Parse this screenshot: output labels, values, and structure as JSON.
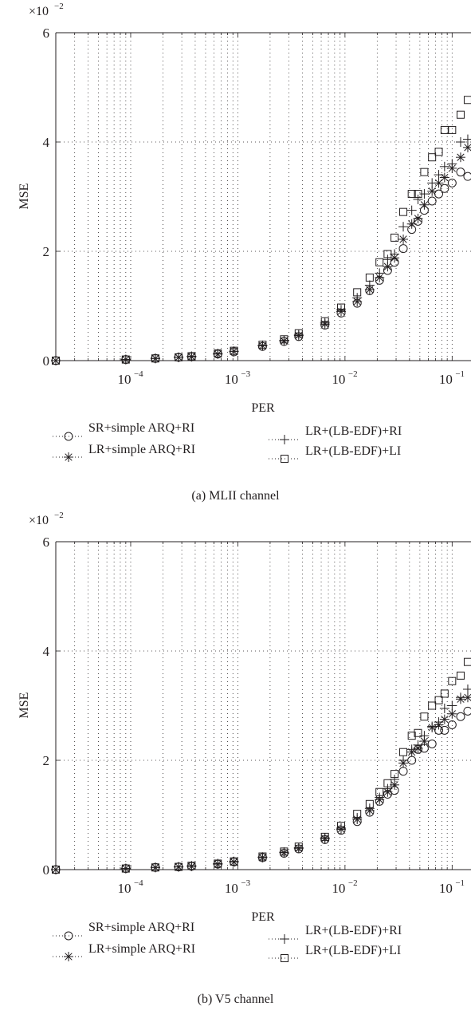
{
  "chart_data": [
    {
      "type": "scatter",
      "x_scale": "log",
      "xlim": [
        2e-05,
        0.15
      ],
      "ylim": [
        0,
        6
      ],
      "y_multiplier_label": "×10",
      "y_multiplier_exponent": "−2",
      "xlabel": "PER",
      "ylabel": "MSE",
      "grid": true,
      "legend_placement": "bottom",
      "x_ticks": [
        {
          "value": 0.0001,
          "label": "10",
          "exp": "−4"
        },
        {
          "value": 0.001,
          "label": "10",
          "exp": "−3"
        },
        {
          "value": 0.01,
          "label": "10",
          "exp": "−2"
        },
        {
          "value": 0.1,
          "label": "10",
          "exp": "−1"
        }
      ],
      "y_ticks": [
        {
          "value": 0,
          "label": "0"
        },
        {
          "value": 2,
          "label": "2"
        },
        {
          "value": 4,
          "label": "4"
        },
        {
          "value": 6,
          "label": "6"
        }
      ],
      "caption": "(a)  MLII channel",
      "series": [
        {
          "name": "SR+simple ARQ+RI",
          "marker": "circle",
          "x": [
            2e-05,
            9e-05,
            0.00017,
            0.00028,
            0.00037,
            0.00065,
            0.00092,
            0.0017,
            0.0027,
            0.0037,
            0.0065,
            0.0092,
            0.013,
            0.017,
            0.021,
            0.025,
            0.029,
            0.035,
            0.042,
            0.048,
            0.055,
            0.065,
            0.075,
            0.085,
            0.1,
            0.12,
            0.14
          ],
          "y": [
            0,
            0.02,
            0.04,
            0.06,
            0.07,
            0.12,
            0.16,
            0.26,
            0.35,
            0.44,
            0.65,
            0.87,
            1.05,
            1.28,
            1.47,
            1.65,
            1.8,
            2.05,
            2.4,
            2.55,
            2.75,
            2.92,
            3.05,
            3.15,
            3.25,
            3.45,
            3.37
          ]
        },
        {
          "name": "LR+simple ARQ+RI",
          "marker": "asterisk",
          "x": [
            2e-05,
            9e-05,
            0.00017,
            0.00028,
            0.00037,
            0.00065,
            0.00092,
            0.0017,
            0.0027,
            0.0037,
            0.0065,
            0.0092,
            0.013,
            0.017,
            0.021,
            0.025,
            0.029,
            0.035,
            0.042,
            0.048,
            0.055,
            0.065,
            0.075,
            0.085,
            0.1,
            0.12,
            0.14
          ],
          "y": [
            0,
            0.02,
            0.04,
            0.06,
            0.07,
            0.12,
            0.17,
            0.27,
            0.36,
            0.46,
            0.67,
            0.9,
            1.08,
            1.3,
            1.52,
            1.72,
            1.88,
            2.22,
            2.5,
            2.6,
            2.85,
            3.1,
            3.25,
            3.35,
            3.52,
            3.72,
            3.9
          ]
        },
        {
          "name": "LR+(LB-EDF)+RI",
          "marker": "plus",
          "x": [
            2e-05,
            9e-05,
            0.00017,
            0.00028,
            0.00037,
            0.00065,
            0.00092,
            0.0017,
            0.0027,
            0.0037,
            0.0065,
            0.0092,
            0.013,
            0.017,
            0.021,
            0.025,
            0.029,
            0.035,
            0.042,
            0.048,
            0.055,
            0.065,
            0.075,
            0.085,
            0.1,
            0.12,
            0.14
          ],
          "y": [
            0,
            0.02,
            0.04,
            0.06,
            0.08,
            0.13,
            0.17,
            0.28,
            0.37,
            0.48,
            0.7,
            0.93,
            1.15,
            1.38,
            1.6,
            1.85,
            1.95,
            2.45,
            2.75,
            2.95,
            3.05,
            3.25,
            3.4,
            3.55,
            3.6,
            4.0,
            4.05
          ]
        },
        {
          "name": "LR+(LB-EDF)+LI",
          "marker": "square",
          "x": [
            2e-05,
            9e-05,
            0.00017,
            0.00028,
            0.00037,
            0.00065,
            0.00092,
            0.0017,
            0.0027,
            0.0037,
            0.0065,
            0.0092,
            0.013,
            0.017,
            0.021,
            0.025,
            0.029,
            0.035,
            0.042,
            0.048,
            0.055,
            0.065,
            0.075,
            0.085,
            0.1,
            0.12,
            0.14
          ],
          "y": [
            0,
            0.02,
            0.04,
            0.06,
            0.08,
            0.13,
            0.18,
            0.29,
            0.39,
            0.5,
            0.72,
            0.97,
            1.25,
            1.52,
            1.8,
            1.95,
            2.25,
            2.72,
            3.05,
            3.05,
            3.45,
            3.72,
            3.82,
            4.22,
            4.22,
            4.5,
            4.77
          ]
        }
      ]
    },
    {
      "type": "scatter",
      "x_scale": "log",
      "xlim": [
        2e-05,
        0.15
      ],
      "ylim": [
        0,
        6
      ],
      "y_multiplier_label": "×10",
      "y_multiplier_exponent": "−2",
      "xlabel": "PER",
      "ylabel": "MSE",
      "grid": true,
      "legend_placement": "bottom",
      "x_ticks": [
        {
          "value": 0.0001,
          "label": "10",
          "exp": "−4"
        },
        {
          "value": 0.001,
          "label": "10",
          "exp": "−3"
        },
        {
          "value": 0.01,
          "label": "10",
          "exp": "−2"
        },
        {
          "value": 0.1,
          "label": "10",
          "exp": "−1"
        }
      ],
      "y_ticks": [
        {
          "value": 0,
          "label": "0"
        },
        {
          "value": 2,
          "label": "2"
        },
        {
          "value": 4,
          "label": "4"
        },
        {
          "value": 6,
          "label": "6"
        }
      ],
      "caption": "(b)  V5 channel",
      "series": [
        {
          "name": "SR+simple ARQ+RI",
          "marker": "circle",
          "x": [
            2e-05,
            9e-05,
            0.00017,
            0.00028,
            0.00037,
            0.00065,
            0.00092,
            0.0017,
            0.0027,
            0.0037,
            0.0065,
            0.0092,
            0.013,
            0.017,
            0.021,
            0.025,
            0.029,
            0.035,
            0.042,
            0.048,
            0.055,
            0.065,
            0.075,
            0.085,
            0.1,
            0.12,
            0.14
          ],
          "y": [
            0,
            0.02,
            0.04,
            0.05,
            0.06,
            0.1,
            0.14,
            0.22,
            0.3,
            0.38,
            0.55,
            0.72,
            0.88,
            1.05,
            1.25,
            1.38,
            1.45,
            1.8,
            2.0,
            2.2,
            2.22,
            2.3,
            2.55,
            2.55,
            2.65,
            2.8,
            2.9
          ]
        },
        {
          "name": "LR+simple ARQ+RI",
          "marker": "asterisk",
          "x": [
            2e-05,
            9e-05,
            0.00017,
            0.00028,
            0.00037,
            0.00065,
            0.00092,
            0.0017,
            0.0027,
            0.0037,
            0.0065,
            0.0092,
            0.013,
            0.017,
            0.021,
            0.025,
            0.029,
            0.035,
            0.042,
            0.048,
            0.055,
            0.065,
            0.075,
            0.085,
            0.1,
            0.12,
            0.14
          ],
          "y": [
            0,
            0.02,
            0.04,
            0.05,
            0.06,
            0.1,
            0.14,
            0.22,
            0.31,
            0.39,
            0.57,
            0.74,
            0.92,
            1.08,
            1.28,
            1.42,
            1.55,
            1.95,
            2.15,
            2.22,
            2.35,
            2.6,
            2.65,
            2.75,
            2.85,
            3.12,
            3.15
          ]
        },
        {
          "name": "LR+(LB-EDF)+RI",
          "marker": "plus",
          "x": [
            2e-05,
            9e-05,
            0.00017,
            0.00028,
            0.00037,
            0.00065,
            0.00092,
            0.0017,
            0.0027,
            0.0037,
            0.0065,
            0.0092,
            0.013,
            0.017,
            0.021,
            0.025,
            0.029,
            0.035,
            0.042,
            0.048,
            0.055,
            0.065,
            0.075,
            0.085,
            0.1,
            0.12,
            0.14
          ],
          "y": [
            0,
            0.02,
            0.04,
            0.05,
            0.07,
            0.11,
            0.15,
            0.23,
            0.32,
            0.4,
            0.58,
            0.76,
            0.95,
            1.12,
            1.32,
            1.48,
            1.65,
            2.0,
            2.2,
            2.28,
            2.45,
            2.62,
            2.7,
            2.95,
            3.0,
            3.15,
            3.3
          ]
        },
        {
          "name": "LR+(LB-EDF)+LI",
          "marker": "square",
          "x": [
            2e-05,
            9e-05,
            0.00017,
            0.00028,
            0.00037,
            0.00065,
            0.00092,
            0.0017,
            0.0027,
            0.0037,
            0.0065,
            0.0092,
            0.013,
            0.017,
            0.021,
            0.025,
            0.029,
            0.035,
            0.042,
            0.048,
            0.055,
            0.065,
            0.075,
            0.085,
            0.1,
            0.12,
            0.14
          ],
          "y": [
            0,
            0.02,
            0.04,
            0.05,
            0.07,
            0.11,
            0.15,
            0.24,
            0.33,
            0.42,
            0.6,
            0.8,
            1.02,
            1.2,
            1.42,
            1.58,
            1.75,
            2.15,
            2.45,
            2.5,
            2.8,
            3.0,
            3.1,
            3.22,
            3.45,
            3.55,
            3.8
          ]
        }
      ]
    }
  ],
  "legend_a": [
    "SR+simple ARQ+RI",
    "LR+simple ARQ+RI",
    "LR+(LB-EDF)+RI",
    "LR+(LB-EDF)+LI"
  ],
  "legend_b": [
    "SR+simple ARQ+RI",
    "LR+simple ARQ+RI",
    "LR+(LB-EDF)+RI",
    "LR+(LB-EDF)+LI"
  ],
  "colors": {
    "ink": "#231f20",
    "grid": "#231f20",
    "background": "#ffffff"
  }
}
